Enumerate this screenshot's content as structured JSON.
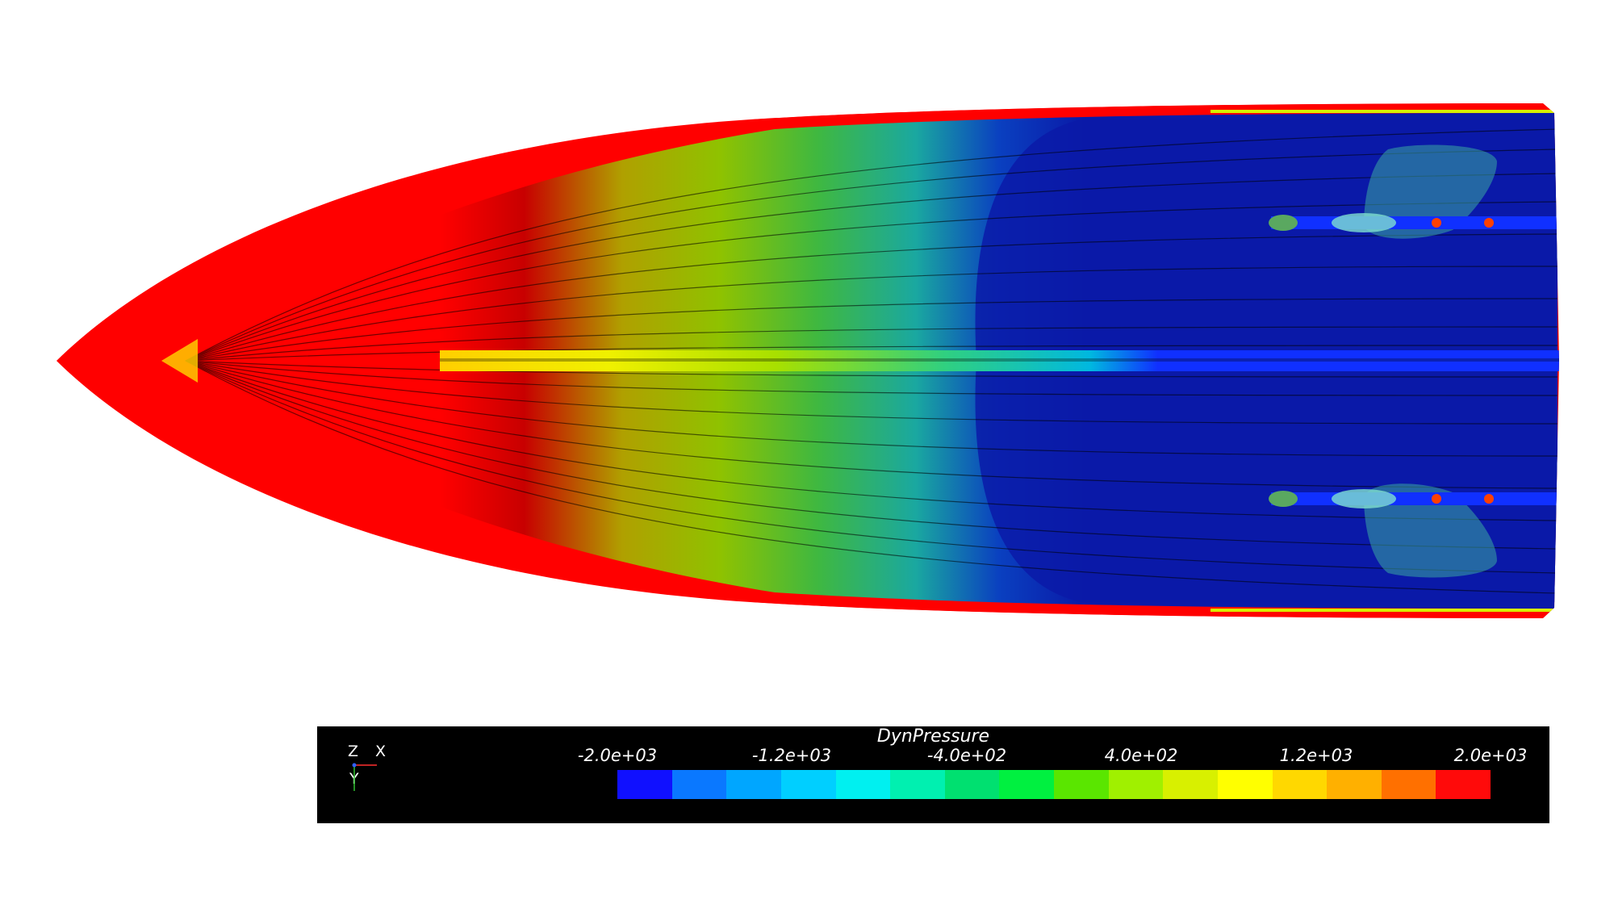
{
  "legend": {
    "title": "DynPressure",
    "ticks": [
      "-2.0e+03",
      "-1.2e+03",
      "-4.0e+02",
      "4.0e+02",
      "1.2e+03",
      "2.0e+03"
    ],
    "colors": [
      "#1010ff",
      "#0a78ff",
      "#00a6ff",
      "#00cfff",
      "#00f0f0",
      "#00f0b0",
      "#00e070",
      "#00f040",
      "#5ae600",
      "#a0f000",
      "#d8f000",
      "#ffff00",
      "#ffd800",
      "#ffb000",
      "#ff7000",
      "#ff0a0a"
    ]
  },
  "axes": {
    "z": "Z",
    "x": "X",
    "y": "Y"
  },
  "scene": {
    "colors": {
      "hull_red": "#ff0000",
      "hull_blue": "#0a1aa8",
      "streamline": "#000000",
      "centerline_blue": "#1030ff"
    }
  }
}
